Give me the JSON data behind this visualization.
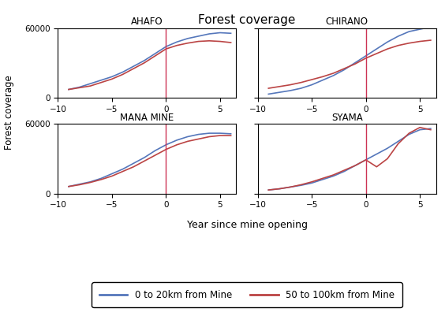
{
  "title": "Forest coverage",
  "xlabel": "Year since mine opening",
  "ylabel": "Forest coverage",
  "subplots": [
    "AHAFO",
    "CHIRANO",
    "MANA MINE",
    "SYAMA"
  ],
  "xmin": -10,
  "xmax": 6.5,
  "ymin": 0,
  "ymax": 60000,
  "vline_x": 0,
  "vline_color": "#cc3355",
  "color_near": "#5577bb",
  "color_far": "#bb4444",
  "legend_labels": [
    "0 to 20km from Mine",
    "50 to 100km from Mine"
  ],
  "AHAFO": {
    "near_x": [
      -9,
      -8,
      -7,
      -6,
      -5,
      -4,
      -3,
      -2,
      -1,
      0,
      1,
      2,
      3,
      4,
      5,
      6
    ],
    "near_y": [
      7000,
      9000,
      12000,
      15000,
      18000,
      22000,
      27000,
      32000,
      38000,
      44000,
      48000,
      51000,
      53000,
      55000,
      56000,
      55500
    ],
    "far_x": [
      -9,
      -8,
      -7,
      -6,
      -5,
      -4,
      -3,
      -2,
      -1,
      0,
      1,
      2,
      3,
      4,
      5,
      6
    ],
    "far_y": [
      7000,
      8500,
      10000,
      13000,
      16000,
      20000,
      25000,
      30000,
      36000,
      42000,
      45000,
      47000,
      48500,
      49000,
      48500,
      47500
    ]
  },
  "CHIRANO": {
    "near_x": [
      -9,
      -8,
      -7,
      -6,
      -5,
      -4,
      -3,
      -2,
      -1,
      0,
      1,
      2,
      3,
      4,
      5,
      6
    ],
    "near_y": [
      3000,
      4500,
      6000,
      8000,
      11000,
      15000,
      19000,
      24000,
      30000,
      36000,
      42000,
      48000,
      53000,
      57000,
      59000,
      61000
    ],
    "far_x": [
      -9,
      -8,
      -7,
      -6,
      -5,
      -4,
      -3,
      -2,
      -1,
      0,
      1,
      2,
      3,
      4,
      5,
      6
    ],
    "far_y": [
      8000,
      9500,
      11000,
      13000,
      15500,
      18000,
      21000,
      25000,
      29000,
      34000,
      38000,
      42000,
      45000,
      47000,
      48500,
      49500
    ]
  },
  "MANA MINE": {
    "near_x": [
      -9,
      -8,
      -7,
      -6,
      -5,
      -4,
      -3,
      -2,
      -1,
      0,
      1,
      2,
      3,
      4,
      5,
      6
    ],
    "near_y": [
      6000,
      8000,
      10000,
      13000,
      17000,
      21000,
      26000,
      31000,
      37000,
      42000,
      46000,
      49000,
      51000,
      52000,
      52000,
      51500
    ],
    "far_x": [
      -9,
      -8,
      -7,
      -6,
      -5,
      -4,
      -3,
      -2,
      -1,
      0,
      1,
      2,
      3,
      4,
      5,
      6
    ],
    "far_y": [
      6000,
      7500,
      9500,
      12000,
      15000,
      19000,
      23000,
      28000,
      33000,
      38000,
      42000,
      45000,
      47000,
      49000,
      50000,
      50000
    ]
  },
  "SYAMA": {
    "near_x": [
      -9,
      -8,
      -7,
      -6,
      -5,
      -4,
      -3,
      -2,
      -1,
      0,
      1,
      2,
      3,
      4,
      5,
      6
    ],
    "near_y": [
      3000,
      4000,
      5500,
      7000,
      9000,
      12000,
      15000,
      19000,
      24000,
      29000,
      34000,
      39000,
      45000,
      51000,
      55000,
      56000
    ],
    "far_x": [
      -9,
      -8,
      -7,
      -6,
      -5,
      -4,
      -3,
      -2,
      -1,
      0,
      1,
      2,
      3,
      4,
      5,
      6
    ],
    "far_y": [
      3000,
      4000,
      5500,
      7500,
      10000,
      13000,
      16000,
      20000,
      24000,
      29000,
      23000,
      30000,
      43000,
      52000,
      57000,
      55000
    ]
  }
}
